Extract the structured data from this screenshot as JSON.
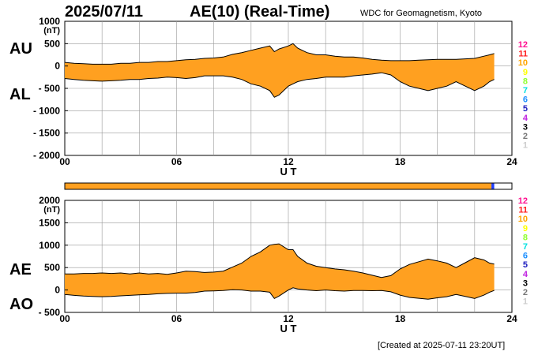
{
  "header": {
    "date": "2025/07/11",
    "title": "AE(10) (Real-Time)",
    "source": "WDC for Geomagnetism, Kyoto"
  },
  "footer": "[Created at 2025-07-11 23:20UT]",
  "colors": {
    "fill": "#ffa020",
    "line": "#000000",
    "grid": "#999999",
    "bar_main": "#ffa020",
    "bar_end": "#2040ff"
  },
  "stations": {
    "labels": [
      "12",
      "11",
      "10",
      "9",
      "8",
      "7",
      "6",
      "5",
      "4",
      "3",
      "2",
      "1"
    ],
    "colors": [
      "#ff1090",
      "#ff1a1a",
      "#ffa500",
      "#ffff00",
      "#90ff30",
      "#00e0e0",
      "#1e90ff",
      "#2020c0",
      "#c020e0",
      "#000000",
      "#777777",
      "#cccccc"
    ]
  },
  "chart_data": [
    {
      "type": "area",
      "panel": "AU/AL",
      "labels": {
        "upper": "AU",
        "lower": "AL",
        "unit": "(nT)",
        "xlabel": "U T"
      },
      "yticks": [
        1000,
        500,
        0,
        -500,
        -1000,
        -1500,
        -2000
      ],
      "ytick_labels": [
        "1000",
        "500",
        "0",
        "- 500",
        "- 1000",
        "- 1500",
        "- 2000"
      ],
      "ylim": [
        -2000,
        1000
      ],
      "xticks": [
        "00",
        "06",
        "12",
        "18",
        "24"
      ],
      "xlim": [
        0,
        24
      ],
      "grid": true,
      "x": [
        0,
        0.5,
        1,
        1.5,
        2,
        2.5,
        3,
        3.5,
        4,
        4.5,
        5,
        5.5,
        6,
        6.5,
        7,
        7.5,
        8,
        8.5,
        9,
        9.5,
        10,
        10.5,
        11,
        11.25,
        11.5,
        12,
        12.25,
        12.5,
        13,
        13.5,
        14,
        14.5,
        15,
        15.5,
        16,
        16.5,
        17,
        17.5,
        18,
        18.5,
        19,
        19.5,
        20,
        20.5,
        21,
        21.5,
        22,
        22.5,
        22.8,
        23.05
      ],
      "series": [
        {
          "name": "AU",
          "values": [
            80,
            60,
            50,
            40,
            40,
            40,
            60,
            60,
            80,
            80,
            100,
            100,
            120,
            140,
            150,
            170,
            180,
            200,
            260,
            300,
            350,
            400,
            450,
            320,
            380,
            450,
            500,
            400,
            300,
            250,
            250,
            220,
            200,
            200,
            180,
            150,
            130,
            120,
            120,
            120,
            130,
            140,
            150,
            150,
            150,
            160,
            170,
            220,
            250,
            280
          ]
        },
        {
          "name": "AL",
          "values": [
            -280,
            -300,
            -320,
            -330,
            -340,
            -330,
            -320,
            -300,
            -300,
            -280,
            -270,
            -250,
            -260,
            -280,
            -260,
            -220,
            -220,
            -220,
            -250,
            -300,
            -400,
            -450,
            -550,
            -700,
            -650,
            -450,
            -400,
            -350,
            -300,
            -280,
            -250,
            -250,
            -250,
            -220,
            -200,
            -180,
            -150,
            -200,
            -350,
            -450,
            -500,
            -550,
            -500,
            -450,
            -350,
            -450,
            -550,
            -450,
            -350,
            -300
          ]
        }
      ]
    },
    {
      "type": "area",
      "panel": "AE/AO",
      "labels": {
        "upper": "AE",
        "lower": "AO",
        "unit": "(nT)",
        "xlabel": "U T"
      },
      "yticks": [
        2000,
        1500,
        1000,
        500,
        0,
        -500
      ],
      "ytick_labels": [
        "2000",
        "1500",
        "1000",
        "500",
        "0",
        "- 500"
      ],
      "ylim": [
        -500,
        2000
      ],
      "xticks": [
        "00",
        "06",
        "12",
        "18",
        "24"
      ],
      "xlim": [
        0,
        24
      ],
      "grid": true,
      "x": [
        0,
        0.5,
        1,
        1.5,
        2,
        2.5,
        3,
        3.5,
        4,
        4.5,
        5,
        5.5,
        6,
        6.5,
        7,
        7.5,
        8,
        8.5,
        9,
        9.5,
        10,
        10.5,
        11,
        11.25,
        11.5,
        12,
        12.25,
        12.5,
        13,
        13.5,
        14,
        14.5,
        15,
        15.5,
        16,
        16.5,
        17,
        17.5,
        18,
        18.5,
        19,
        19.5,
        20,
        20.5,
        21,
        21.5,
        22,
        22.5,
        22.8,
        23.05
      ],
      "series": [
        {
          "name": "AE",
          "values": [
            360,
            360,
            370,
            370,
            380,
            370,
            380,
            360,
            380,
            360,
            370,
            350,
            380,
            420,
            410,
            390,
            400,
            420,
            510,
            600,
            750,
            850,
            1000,
            1020,
            1030,
            900,
            900,
            750,
            600,
            530,
            500,
            470,
            450,
            420,
            380,
            330,
            280,
            320,
            470,
            570,
            630,
            690,
            650,
            600,
            500,
            610,
            720,
            670,
            600,
            580
          ]
        },
        {
          "name": "AO",
          "values": [
            -100,
            -120,
            -135,
            -145,
            -150,
            -145,
            -130,
            -120,
            -110,
            -100,
            -85,
            -75,
            -70,
            -70,
            -55,
            -25,
            -20,
            -10,
            5,
            0,
            -25,
            -25,
            -50,
            -190,
            -135,
            0,
            50,
            25,
            0,
            -15,
            0,
            -15,
            -25,
            -10,
            -10,
            -15,
            -10,
            -40,
            -115,
            -165,
            -185,
            -205,
            -175,
            -150,
            -100,
            -145,
            -190,
            -115,
            -50,
            -10
          ]
        }
      ]
    }
  ]
}
